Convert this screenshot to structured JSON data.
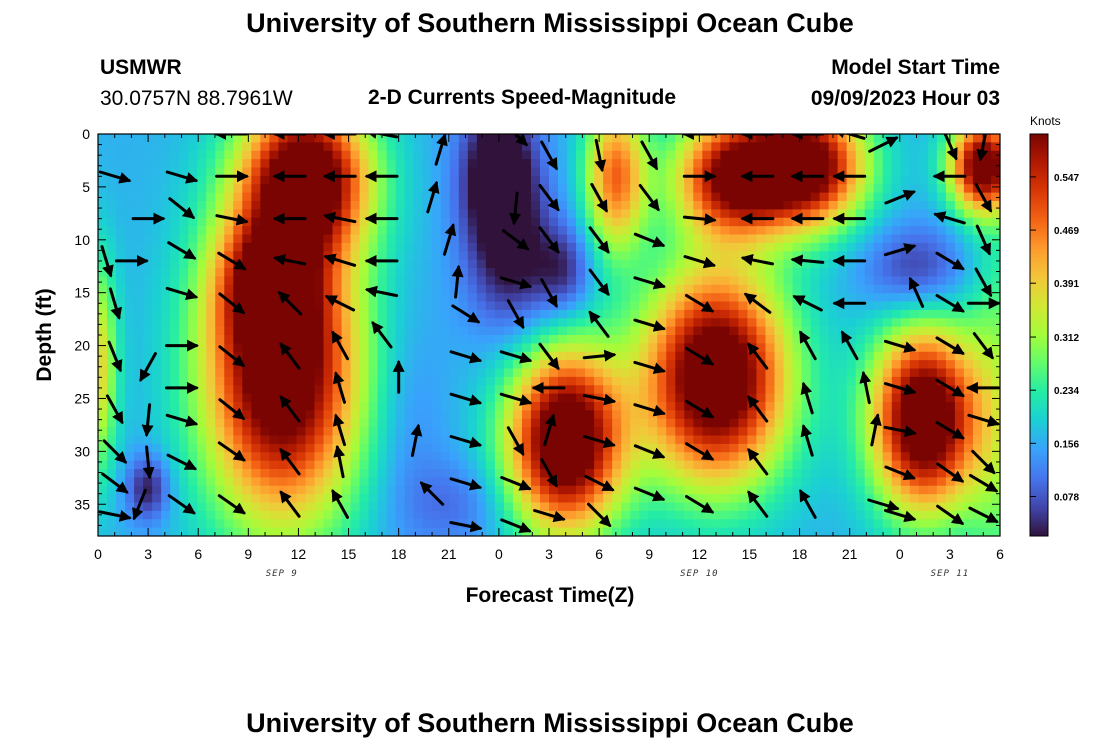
{
  "page": {
    "title": "University of Southern Mississippi Ocean Cube",
    "title_repeat": "University of Southern Mississippi Ocean Cube",
    "station_name": "USMWR",
    "station_coords": "30.0757N  88.7961W",
    "subtitle": "2-D Currents Speed-Magnitude",
    "model_start_label": "Model Start Time",
    "model_start_value": "09/09/2023 Hour 03"
  },
  "chart_data": {
    "type": "heatmap",
    "title": "2-D Currents Speed-Magnitude",
    "xlabel": "Forecast Time(Z)",
    "ylabel": "Depth (ft)",
    "xlim": [
      0,
      54
    ],
    "ylim": [
      0,
      38
    ],
    "y_inverted": true,
    "x_tick_values": [
      0,
      3,
      6,
      9,
      12,
      15,
      18,
      21,
      24,
      27,
      30,
      33,
      36,
      39,
      42,
      45,
      48,
      51,
      54
    ],
    "x_tick_labels": [
      "0",
      "3",
      "6",
      "9",
      "12",
      "15",
      "18",
      "21",
      "0",
      "3",
      "6",
      "9",
      "12",
      "15",
      "18",
      "21",
      "0",
      "3",
      "6"
    ],
    "y_tick_values": [
      0,
      5,
      10,
      15,
      20,
      25,
      30,
      35
    ],
    "y_tick_labels": [
      "0",
      "5",
      "10",
      "15",
      "20",
      "25",
      "30",
      "35"
    ],
    "date_labels": [
      {
        "text": "SEP 9",
        "x": 11
      },
      {
        "text": "SEP 10",
        "x": 36
      },
      {
        "text": "SEP 11",
        "x": 51
      }
    ],
    "colorbar": {
      "label": "Knots",
      "min": 0.02,
      "max": 0.61,
      "tick_values": [
        0.078,
        0.156,
        0.234,
        0.312,
        0.391,
        0.469,
        0.547
      ],
      "tick_labels": [
        "0.078",
        "0.156",
        "0.234",
        "0.312",
        "0.391",
        "0.469",
        "0.547"
      ],
      "stops": [
        "#30123b",
        "#4145ab",
        "#4675ed",
        "#39a2fc",
        "#1bcfd4",
        "#24eca6",
        "#61fc6c",
        "#a4fc3b",
        "#d1e834",
        "#f3c63a",
        "#fe9b2d",
        "#f36315",
        "#d93806",
        "#b11901",
        "#7a0402"
      ]
    },
    "field_centers": [
      {
        "t": 11,
        "d": 22,
        "sx": 3.2,
        "sd": 10,
        "a": 0.56
      },
      {
        "t": 12.5,
        "d": 4,
        "sx": 2.6,
        "sd": 5,
        "a": 0.5
      },
      {
        "t": 10,
        "d": 14,
        "sx": 2.0,
        "sd": 4,
        "a": 0.22
      },
      {
        "t": 28,
        "d": 29,
        "sx": 2.4,
        "sd": 6,
        "a": 0.56
      },
      {
        "t": 37,
        "d": 23,
        "sx": 3.0,
        "sd": 7,
        "a": 0.56
      },
      {
        "t": 38,
        "d": 4,
        "sx": 2.4,
        "sd": 4,
        "a": 0.45
      },
      {
        "t": 42.5,
        "d": 3,
        "sx": 2.4,
        "sd": 4,
        "a": 0.5
      },
      {
        "t": 31,
        "d": 4,
        "sx": 1.3,
        "sd": 5,
        "a": 0.32
      },
      {
        "t": 49.5,
        "d": 27,
        "sx": 2.2,
        "sd": 6,
        "a": 0.56
      },
      {
        "t": 53,
        "d": 3,
        "sx": 1.4,
        "sd": 3,
        "a": 0.5
      },
      {
        "t": 0,
        "d": 22,
        "sx": 0.8,
        "sd": 7,
        "a": 0.22
      },
      {
        "t": 54,
        "d": 26,
        "sx": 1.5,
        "sd": 14,
        "a": 0.12
      },
      {
        "t": 3,
        "d": 33.5,
        "sx": 0.9,
        "sd": 2.2,
        "a": -0.14
      },
      {
        "t": 24,
        "d": 4,
        "sx": 1.6,
        "sd": 5,
        "a": -0.22
      },
      {
        "t": 25,
        "d": 13,
        "sx": 2.0,
        "sd": 5,
        "a": -0.12
      },
      {
        "t": 28,
        "d": 13,
        "sx": 1.2,
        "sd": 3,
        "a": -0.1
      },
      {
        "t": 49,
        "d": 13,
        "sx": 2.2,
        "sd": 3,
        "a": -0.12
      },
      {
        "t": 21.5,
        "d": 35,
        "sx": 2.2,
        "sd": 3,
        "a": -0.06
      },
      {
        "t": 18.5,
        "d": 28,
        "sx": 1.6,
        "sd": 8,
        "a": -0.04
      }
    ],
    "vectors": [
      {
        "t": 1,
        "d": 4,
        "u": 1,
        "v": -0.3
      },
      {
        "t": 3,
        "d": 8,
        "u": 1,
        "v": 0
      },
      {
        "t": 0.5,
        "d": 12,
        "u": 0.3,
        "v": -1
      },
      {
        "t": 2,
        "d": 12,
        "u": 1,
        "v": 0
      },
      {
        "t": 1,
        "d": 16,
        "u": 0.3,
        "v": -1
      },
      {
        "t": 1,
        "d": 21,
        "u": 0.4,
        "v": -1
      },
      {
        "t": 3,
        "d": 22,
        "u": -0.5,
        "v": -0.9
      },
      {
        "t": 1,
        "d": 26,
        "u": 0.5,
        "v": -0.9
      },
      {
        "t": 3,
        "d": 27,
        "u": -0.1,
        "v": -1
      },
      {
        "t": 1,
        "d": 30,
        "u": 0.7,
        "v": -0.7
      },
      {
        "t": 3,
        "d": 31,
        "u": 0.1,
        "v": -1
      },
      {
        "t": 1,
        "d": 33,
        "u": 0.8,
        "v": -0.6
      },
      {
        "t": 2.5,
        "d": 35,
        "u": -0.4,
        "v": -1
      },
      {
        "t": 1,
        "d": 36,
        "u": 1,
        "v": -0.2
      },
      {
        "t": 5,
        "d": 4,
        "u": 1,
        "v": -0.3
      },
      {
        "t": 5,
        "d": 7,
        "u": 1,
        "v": -0.8
      },
      {
        "t": 5,
        "d": 11,
        "u": 1,
        "v": -0.6
      },
      {
        "t": 5,
        "d": 15,
        "u": 1,
        "v": -0.3
      },
      {
        "t": 5,
        "d": 20,
        "u": 1,
        "v": 0
      },
      {
        "t": 5,
        "d": 24,
        "u": 1,
        "v": 0
      },
      {
        "t": 5,
        "d": 27,
        "u": 1,
        "v": -0.3
      },
      {
        "t": 5,
        "d": 31,
        "u": 1,
        "v": -0.5
      },
      {
        "t": 5,
        "d": 35,
        "u": 1,
        "v": -0.7
      },
      {
        "t": 8,
        "d": 0,
        "u": -1,
        "v": 0
      },
      {
        "t": 8,
        "d": 4,
        "u": 1,
        "v": 0
      },
      {
        "t": 8,
        "d": 8,
        "u": 1,
        "v": -0.2
      },
      {
        "t": 8,
        "d": 12,
        "u": 1,
        "v": -0.6
      },
      {
        "t": 8,
        "d": 16,
        "u": 1,
        "v": -0.8
      },
      {
        "t": 8,
        "d": 21,
        "u": 1,
        "v": -0.8
      },
      {
        "t": 8,
        "d": 26,
        "u": 1,
        "v": -0.8
      },
      {
        "t": 8,
        "d": 30,
        "u": 1,
        "v": -0.7
      },
      {
        "t": 8,
        "d": 35,
        "u": 1,
        "v": -0.7
      },
      {
        "t": 11.5,
        "d": 0,
        "u": -1,
        "v": 0
      },
      {
        "t": 11.5,
        "d": 4,
        "u": -1,
        "v": 0
      },
      {
        "t": 11.5,
        "d": 8,
        "u": -1,
        "v": 0
      },
      {
        "t": 11.5,
        "d": 12,
        "u": -1,
        "v": 0.2
      },
      {
        "t": 11.5,
        "d": 16,
        "u": -0.7,
        "v": 0.7
      },
      {
        "t": 11.5,
        "d": 21,
        "u": -0.6,
        "v": 0.8
      },
      {
        "t": 11.5,
        "d": 26,
        "u": -0.6,
        "v": 0.8
      },
      {
        "t": 11.5,
        "d": 31,
        "u": -0.6,
        "v": 0.8
      },
      {
        "t": 11.5,
        "d": 35,
        "u": -0.6,
        "v": 0.8
      },
      {
        "t": 14.5,
        "d": 0,
        "u": -1,
        "v": 0
      },
      {
        "t": 14.5,
        "d": 4,
        "u": -1,
        "v": 0
      },
      {
        "t": 14.5,
        "d": 8,
        "u": -1,
        "v": 0.2
      },
      {
        "t": 14.5,
        "d": 12,
        "u": -1,
        "v": 0.3
      },
      {
        "t": 14.5,
        "d": 16,
        "u": -1,
        "v": 0.5
      },
      {
        "t": 14.5,
        "d": 20,
        "u": -0.5,
        "v": 0.9
      },
      {
        "t": 14.5,
        "d": 24,
        "u": -0.3,
        "v": 1
      },
      {
        "t": 14.5,
        "d": 28,
        "u": -0.3,
        "v": 1
      },
      {
        "t": 14.5,
        "d": 31,
        "u": -0.2,
        "v": 1
      },
      {
        "t": 14.5,
        "d": 35,
        "u": -0.5,
        "v": 0.9
      },
      {
        "t": 17,
        "d": 0,
        "u": -1,
        "v": 0.2
      },
      {
        "t": 17,
        "d": 4,
        "u": -1,
        "v": 0
      },
      {
        "t": 17,
        "d": 8,
        "u": -1,
        "v": 0
      },
      {
        "t": 17,
        "d": 12,
        "u": -1,
        "v": 0
      },
      {
        "t": 17,
        "d": 15,
        "u": -1,
        "v": 0.2
      },
      {
        "t": 17,
        "d": 19,
        "u": -0.6,
        "v": 0.8
      },
      {
        "t": 18,
        "d": 23,
        "u": 0,
        "v": 1
      },
      {
        "t": 19,
        "d": 29,
        "u": 0.2,
        "v": 1
      },
      {
        "t": 20,
        "d": 34,
        "u": -0.7,
        "v": 0.7
      },
      {
        "t": 20,
        "d": 6,
        "u": 0.3,
        "v": 1
      },
      {
        "t": 20.5,
        "d": 1.5,
        "u": 0.3,
        "v": 1
      },
      {
        "t": 21,
        "d": 10,
        "u": 0.3,
        "v": 1
      },
      {
        "t": 21.5,
        "d": 14,
        "u": 0.1,
        "v": 1
      },
      {
        "t": 22,
        "d": 17,
        "u": 0.8,
        "v": -0.5
      },
      {
        "t": 22,
        "d": 21,
        "u": 1,
        "v": -0.3
      },
      {
        "t": 22,
        "d": 25,
        "u": 1,
        "v": -0.3
      },
      {
        "t": 22,
        "d": 29,
        "u": 1,
        "v": -0.3
      },
      {
        "t": 22,
        "d": 33,
        "u": 1,
        "v": -0.3
      },
      {
        "t": 22,
        "d": 37,
        "u": 1,
        "v": -0.2
      },
      {
        "t": 25,
        "d": 0,
        "u": 0.7,
        "v": -0.7
      },
      {
        "t": 25,
        "d": 7,
        "u": -0.1,
        "v": -1
      },
      {
        "t": 25,
        "d": 10,
        "u": 0.8,
        "v": -0.6
      },
      {
        "t": 25,
        "d": 14,
        "u": 1,
        "v": -0.3
      },
      {
        "t": 25,
        "d": 17,
        "u": 0.5,
        "v": -0.9
      },
      {
        "t": 25,
        "d": 21,
        "u": 1,
        "v": -0.3
      },
      {
        "t": 25,
        "d": 25,
        "u": 1,
        "v": -0.3
      },
      {
        "t": 25,
        "d": 29,
        "u": 0.5,
        "v": -0.9
      },
      {
        "t": 25,
        "d": 33,
        "u": 1,
        "v": -0.4
      },
      {
        "t": 25,
        "d": 37,
        "u": 1,
        "v": -0.4
      },
      {
        "t": 27,
        "d": 2,
        "u": 0.5,
        "v": -0.9
      },
      {
        "t": 27,
        "d": 6,
        "u": 0.6,
        "v": -0.8
      },
      {
        "t": 27,
        "d": 10,
        "u": 0.6,
        "v": -0.8
      },
      {
        "t": 27,
        "d": 15,
        "u": 0.5,
        "v": -0.9
      },
      {
        "t": 27,
        "d": 21,
        "u": 0.6,
        "v": -0.8
      },
      {
        "t": 27,
        "d": 24,
        "u": -1,
        "v": 0
      },
      {
        "t": 27,
        "d": 28,
        "u": 0.3,
        "v": 1
      },
      {
        "t": 27,
        "d": 32,
        "u": 0.5,
        "v": -0.9
      },
      {
        "t": 27,
        "d": 36,
        "u": 1,
        "v": -0.3
      },
      {
        "t": 30,
        "d": 2,
        "u": 0.2,
        "v": -1
      },
      {
        "t": 30,
        "d": 6,
        "u": 0.5,
        "v": -0.9
      },
      {
        "t": 30,
        "d": 10,
        "u": 0.6,
        "v": -0.8
      },
      {
        "t": 30,
        "d": 14,
        "u": 0.6,
        "v": -0.8
      },
      {
        "t": 30,
        "d": 18,
        "u": -0.6,
        "v": 0.8
      },
      {
        "t": 30,
        "d": 21,
        "u": 1,
        "v": 0.1
      },
      {
        "t": 30,
        "d": 25,
        "u": 1,
        "v": -0.2
      },
      {
        "t": 30,
        "d": 29,
        "u": 1,
        "v": -0.3
      },
      {
        "t": 30,
        "d": 33,
        "u": 1,
        "v": -0.5
      },
      {
        "t": 30,
        "d": 36,
        "u": 0.7,
        "v": -0.7
      },
      {
        "t": 33,
        "d": 2,
        "u": 0.5,
        "v": -0.9
      },
      {
        "t": 33,
        "d": 6,
        "u": 0.6,
        "v": -0.8
      },
      {
        "t": 33,
        "d": 10,
        "u": 1,
        "v": -0.4
      },
      {
        "t": 33,
        "d": 14,
        "u": 1,
        "v": -0.3
      },
      {
        "t": 33,
        "d": 18,
        "u": 1,
        "v": -0.3
      },
      {
        "t": 33,
        "d": 22,
        "u": 1,
        "v": -0.3
      },
      {
        "t": 33,
        "d": 26,
        "u": 1,
        "v": -0.3
      },
      {
        "t": 33,
        "d": 30,
        "u": 1,
        "v": -0.4
      },
      {
        "t": 33,
        "d": 34,
        "u": 1,
        "v": -0.4
      },
      {
        "t": 36,
        "d": 0,
        "u": -1,
        "v": 0
      },
      {
        "t": 36,
        "d": 4,
        "u": 1,
        "v": 0
      },
      {
        "t": 36,
        "d": 8,
        "u": 1,
        "v": -0.1
      },
      {
        "t": 36,
        "d": 12,
        "u": 1,
        "v": -0.3
      },
      {
        "t": 36,
        "d": 16,
        "u": 1,
        "v": -0.6
      },
      {
        "t": 36,
        "d": 21,
        "u": 1,
        "v": -0.6
      },
      {
        "t": 36,
        "d": 26,
        "u": 1,
        "v": -0.6
      },
      {
        "t": 36,
        "d": 30,
        "u": 1,
        "v": -0.6
      },
      {
        "t": 36,
        "d": 35,
        "u": 1,
        "v": -0.6
      },
      {
        "t": 39.5,
        "d": 0,
        "u": -1,
        "v": 0
      },
      {
        "t": 39.5,
        "d": 4,
        "u": -1,
        "v": 0
      },
      {
        "t": 39.5,
        "d": 8,
        "u": -1,
        "v": 0
      },
      {
        "t": 39.5,
        "d": 12,
        "u": -1,
        "v": 0.2
      },
      {
        "t": 39.5,
        "d": 16,
        "u": -0.8,
        "v": 0.6
      },
      {
        "t": 39.5,
        "d": 21,
        "u": -0.6,
        "v": 0.8
      },
      {
        "t": 39.5,
        "d": 26,
        "u": -0.6,
        "v": 0.8
      },
      {
        "t": 39.5,
        "d": 31,
        "u": -0.6,
        "v": 0.8
      },
      {
        "t": 39.5,
        "d": 35,
        "u": -0.6,
        "v": 0.8
      },
      {
        "t": 42.5,
        "d": 0,
        "u": -1,
        "v": 0
      },
      {
        "t": 42.5,
        "d": 4,
        "u": -1,
        "v": 0
      },
      {
        "t": 42.5,
        "d": 8,
        "u": -1,
        "v": 0
      },
      {
        "t": 42.5,
        "d": 12,
        "u": -1,
        "v": 0.1
      },
      {
        "t": 42.5,
        "d": 16,
        "u": -1,
        "v": 0.5
      },
      {
        "t": 42.5,
        "d": 20,
        "u": -0.5,
        "v": 0.9
      },
      {
        "t": 42.5,
        "d": 25,
        "u": -0.3,
        "v": 1
      },
      {
        "t": 42.5,
        "d": 29,
        "u": -0.3,
        "v": 1
      },
      {
        "t": 42.5,
        "d": 35,
        "u": -0.5,
        "v": 0.9
      },
      {
        "t": 45,
        "d": 0,
        "u": -1,
        "v": 0.3
      },
      {
        "t": 45,
        "d": 4,
        "u": -1,
        "v": 0
      },
      {
        "t": 45,
        "d": 8,
        "u": -1,
        "v": 0
      },
      {
        "t": 45,
        "d": 12,
        "u": -1,
        "v": 0
      },
      {
        "t": 45,
        "d": 16,
        "u": -1,
        "v": 0
      },
      {
        "t": 45,
        "d": 20,
        "u": -0.5,
        "v": 0.9
      },
      {
        "t": 46,
        "d": 24,
        "u": -0.2,
        "v": 1
      },
      {
        "t": 46.5,
        "d": 28,
        "u": 0.2,
        "v": 1
      },
      {
        "t": 47,
        "d": 35,
        "u": 1,
        "v": -0.3
      },
      {
        "t": 47,
        "d": 1,
        "u": 1,
        "v": 0.5
      },
      {
        "t": 48,
        "d": 6,
        "u": 1,
        "v": 0.4
      },
      {
        "t": 48,
        "d": 11,
        "u": 1,
        "v": 0.3
      },
      {
        "t": 49,
        "d": 15,
        "u": -0.4,
        "v": 0.9
      },
      {
        "t": 48,
        "d": 20,
        "u": 1,
        "v": -0.3
      },
      {
        "t": 48,
        "d": 24,
        "u": 1,
        "v": -0.3
      },
      {
        "t": 48,
        "d": 28,
        "u": 1,
        "v": -0.2
      },
      {
        "t": 48,
        "d": 32,
        "u": 1,
        "v": -0.4
      },
      {
        "t": 48,
        "d": 36,
        "u": 1,
        "v": -0.3
      },
      {
        "t": 51,
        "d": 1,
        "u": 0.4,
        "v": -0.9
      },
      {
        "t": 51,
        "d": 4,
        "u": -1,
        "v": 0
      },
      {
        "t": 51,
        "d": 8,
        "u": -1,
        "v": 0.3
      },
      {
        "t": 51,
        "d": 12,
        "u": 1,
        "v": -0.6
      },
      {
        "t": 51,
        "d": 16,
        "u": 1,
        "v": -0.6
      },
      {
        "t": 51,
        "d": 20,
        "u": 1,
        "v": -0.6
      },
      {
        "t": 51,
        "d": 24,
        "u": 1,
        "v": -0.6
      },
      {
        "t": 51,
        "d": 28,
        "u": 1,
        "v": -0.6
      },
      {
        "t": 51,
        "d": 32,
        "u": 1,
        "v": -0.7
      },
      {
        "t": 51,
        "d": 36,
        "u": 1,
        "v": -0.7
      },
      {
        "t": 53,
        "d": 1,
        "u": -0.2,
        "v": -1
      },
      {
        "t": 53,
        "d": 6,
        "u": 0.5,
        "v": -0.9
      },
      {
        "t": 53,
        "d": 10,
        "u": 0.4,
        "v": -0.9
      },
      {
        "t": 53,
        "d": 14,
        "u": 0.5,
        "v": -0.9
      },
      {
        "t": 53,
        "d": 16,
        "u": 1,
        "v": 0
      },
      {
        "t": 53,
        "d": 20,
        "u": 0.6,
        "v": -0.8
      },
      {
        "t": 53,
        "d": 24,
        "u": -1,
        "v": 0
      },
      {
        "t": 53,
        "d": 27,
        "u": 1,
        "v": -0.3
      },
      {
        "t": 53,
        "d": 31,
        "u": 0.7,
        "v": -0.7
      },
      {
        "t": 53,
        "d": 33,
        "u": 1,
        "v": -0.6
      },
      {
        "t": 53,
        "d": 36,
        "u": 1,
        "v": -0.5
      }
    ]
  }
}
